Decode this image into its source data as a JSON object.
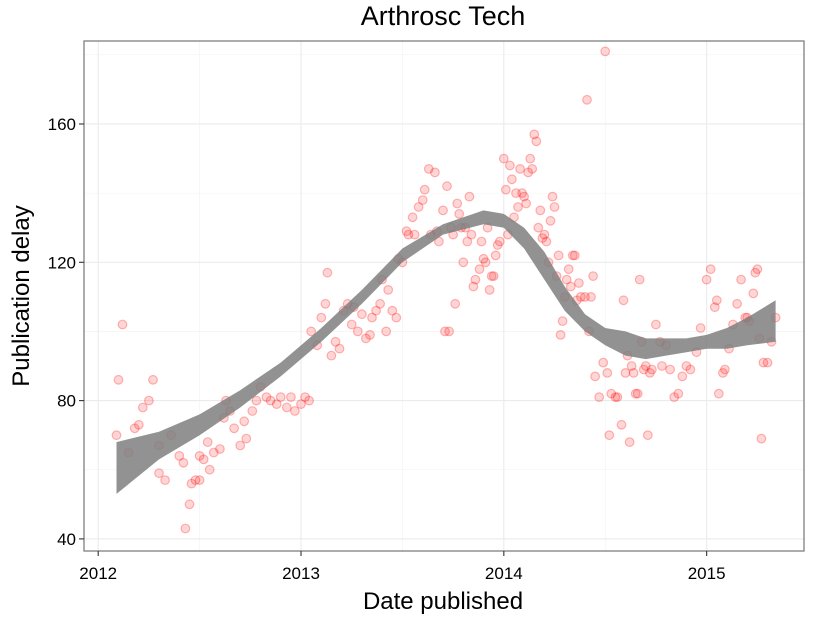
{
  "chart_data": {
    "type": "scatter",
    "title": "Arthrosc Tech",
    "xlabel": "Date published",
    "ylabel": "Publication delay",
    "xlim": [
      2011.93,
      2015.48
    ],
    "ylim": [
      36.5,
      184
    ],
    "x_ticks": [
      {
        "value": 2012,
        "label": "2012"
      },
      {
        "value": 2013,
        "label": "2013"
      },
      {
        "value": 2014,
        "label": "2014"
      },
      {
        "value": 2015,
        "label": "2015"
      }
    ],
    "y_ticks": [
      {
        "value": 40,
        "label": "40"
      },
      {
        "value": 80,
        "label": "80"
      },
      {
        "value": 120,
        "label": "120"
      },
      {
        "value": 160,
        "label": "160"
      }
    ],
    "grid": true,
    "points_color": "#ff0000",
    "smooth_color": "#7f7f7f",
    "points": [
      [
        2012.09,
        70
      ],
      [
        2012.1,
        86
      ],
      [
        2012.12,
        102
      ],
      [
        2012.15,
        65
      ],
      [
        2012.18,
        72
      ],
      [
        2012.2,
        73
      ],
      [
        2012.22,
        78
      ],
      [
        2012.25,
        80
      ],
      [
        2012.27,
        86
      ],
      [
        2012.3,
        67
      ],
      [
        2012.3,
        59
      ],
      [
        2012.33,
        57
      ],
      [
        2012.36,
        70
      ],
      [
        2012.4,
        64
      ],
      [
        2012.42,
        62
      ],
      [
        2012.43,
        43
      ],
      [
        2012.45,
        50
      ],
      [
        2012.46,
        56
      ],
      [
        2012.48,
        57
      ],
      [
        2012.5,
        57
      ],
      [
        2012.5,
        64
      ],
      [
        2012.52,
        63
      ],
      [
        2012.54,
        68
      ],
      [
        2012.55,
        60
      ],
      [
        2012.57,
        65
      ],
      [
        2012.6,
        66
      ],
      [
        2012.62,
        75
      ],
      [
        2012.63,
        80
      ],
      [
        2012.65,
        77
      ],
      [
        2012.67,
        72
      ],
      [
        2012.7,
        67
      ],
      [
        2012.72,
        74
      ],
      [
        2012.73,
        69
      ],
      [
        2012.76,
        77
      ],
      [
        2012.78,
        80
      ],
      [
        2012.8,
        84
      ],
      [
        2012.83,
        81
      ],
      [
        2012.85,
        80
      ],
      [
        2012.88,
        79
      ],
      [
        2012.9,
        81
      ],
      [
        2012.93,
        78
      ],
      [
        2012.95,
        81
      ],
      [
        2012.97,
        77
      ],
      [
        2013.0,
        79
      ],
      [
        2013.02,
        81
      ],
      [
        2013.04,
        80
      ],
      [
        2013.05,
        100
      ],
      [
        2013.08,
        96
      ],
      [
        2013.1,
        104
      ],
      [
        2013.12,
        108
      ],
      [
        2013.13,
        117
      ],
      [
        2013.15,
        93
      ],
      [
        2013.17,
        97
      ],
      [
        2013.19,
        95
      ],
      [
        2013.21,
        106
      ],
      [
        2013.23,
        108
      ],
      [
        2013.25,
        102
      ],
      [
        2013.26,
        107
      ],
      [
        2013.28,
        100
      ],
      [
        2013.3,
        105
      ],
      [
        2013.32,
        98
      ],
      [
        2013.34,
        99
      ],
      [
        2013.35,
        104
      ],
      [
        2013.37,
        106
      ],
      [
        2013.39,
        108
      ],
      [
        2013.4,
        115
      ],
      [
        2013.42,
        100
      ],
      [
        2013.43,
        112
      ],
      [
        2013.45,
        106
      ],
      [
        2013.47,
        104
      ],
      [
        2013.48,
        121
      ],
      [
        2013.5,
        120
      ],
      [
        2013.52,
        129
      ],
      [
        2013.53,
        128
      ],
      [
        2013.55,
        133
      ],
      [
        2013.56,
        128
      ],
      [
        2013.58,
        136
      ],
      [
        2013.6,
        138
      ],
      [
        2013.61,
        141
      ],
      [
        2013.63,
        147
      ],
      [
        2013.64,
        128
      ],
      [
        2013.66,
        146
      ],
      [
        2013.67,
        129
      ],
      [
        2013.68,
        126
      ],
      [
        2013.7,
        135
      ],
      [
        2013.71,
        100
      ],
      [
        2013.72,
        142
      ],
      [
        2013.73,
        100
      ],
      [
        2013.74,
        130
      ],
      [
        2013.75,
        128
      ],
      [
        2013.76,
        108
      ],
      [
        2013.77,
        137
      ],
      [
        2013.78,
        134
      ],
      [
        2013.79,
        130
      ],
      [
        2013.8,
        120
      ],
      [
        2013.81,
        130
      ],
      [
        2013.82,
        126
      ],
      [
        2013.83,
        139
      ],
      [
        2013.84,
        128
      ],
      [
        2013.85,
        113
      ],
      [
        2013.86,
        115
      ],
      [
        2013.88,
        118
      ],
      [
        2013.89,
        126
      ],
      [
        2013.9,
        121
      ],
      [
        2013.91,
        120
      ],
      [
        2013.92,
        130
      ],
      [
        2013.93,
        112
      ],
      [
        2013.94,
        116
      ],
      [
        2013.95,
        116
      ],
      [
        2013.96,
        122
      ],
      [
        2013.97,
        125
      ],
      [
        2013.98,
        126
      ],
      [
        2014.0,
        150
      ],
      [
        2014.01,
        141
      ],
      [
        2014.02,
        128
      ],
      [
        2014.03,
        148
      ],
      [
        2014.04,
        144
      ],
      [
        2014.05,
        133
      ],
      [
        2014.06,
        140
      ],
      [
        2014.07,
        136
      ],
      [
        2014.08,
        147
      ],
      [
        2014.09,
        140
      ],
      [
        2014.1,
        139
      ],
      [
        2014.11,
        137
      ],
      [
        2014.12,
        146
      ],
      [
        2014.13,
        150
      ],
      [
        2014.14,
        147
      ],
      [
        2014.15,
        157
      ],
      [
        2014.16,
        155
      ],
      [
        2014.17,
        130
      ],
      [
        2014.18,
        135
      ],
      [
        2014.19,
        127
      ],
      [
        2014.2,
        128
      ],
      [
        2014.21,
        126
      ],
      [
        2014.22,
        120
      ],
      [
        2014.23,
        132
      ],
      [
        2014.24,
        139
      ],
      [
        2014.25,
        136
      ],
      [
        2014.26,
        116
      ],
      [
        2014.27,
        122
      ],
      [
        2014.28,
        99
      ],
      [
        2014.29,
        103
      ],
      [
        2014.3,
        110
      ],
      [
        2014.31,
        115
      ],
      [
        2014.32,
        118
      ],
      [
        2014.33,
        113
      ],
      [
        2014.34,
        122
      ],
      [
        2014.35,
        122
      ],
      [
        2014.36,
        109
      ],
      [
        2014.37,
        114
      ],
      [
        2014.38,
        110
      ],
      [
        2014.4,
        110
      ],
      [
        2014.41,
        167
      ],
      [
        2014.42,
        100
      ],
      [
        2014.43,
        110
      ],
      [
        2014.44,
        116
      ],
      [
        2014.45,
        87
      ],
      [
        2014.47,
        81
      ],
      [
        2014.49,
        91
      ],
      [
        2014.5,
        181
      ],
      [
        2014.51,
        88
      ],
      [
        2014.52,
        70
      ],
      [
        2014.53,
        82
      ],
      [
        2014.55,
        81
      ],
      [
        2014.56,
        81
      ],
      [
        2014.58,
        73
      ],
      [
        2014.59,
        109
      ],
      [
        2014.6,
        88
      ],
      [
        2014.61,
        93
      ],
      [
        2014.62,
        68
      ],
      [
        2014.63,
        90
      ],
      [
        2014.64,
        88
      ],
      [
        2014.65,
        82
      ],
      [
        2014.66,
        82
      ],
      [
        2014.67,
        115
      ],
      [
        2014.68,
        97
      ],
      [
        2014.69,
        89
      ],
      [
        2014.7,
        90
      ],
      [
        2014.71,
        70
      ],
      [
        2014.72,
        88
      ],
      [
        2014.73,
        89
      ],
      [
        2014.75,
        102
      ],
      [
        2014.77,
        97
      ],
      [
        2014.78,
        90
      ],
      [
        2014.8,
        96
      ],
      [
        2014.82,
        89
      ],
      [
        2014.84,
        81
      ],
      [
        2014.86,
        82
      ],
      [
        2014.88,
        87
      ],
      [
        2014.9,
        90
      ],
      [
        2014.92,
        89
      ],
      [
        2014.95,
        94
      ],
      [
        2014.97,
        101
      ],
      [
        2015.0,
        115
      ],
      [
        2015.02,
        118
      ],
      [
        2015.04,
        107
      ],
      [
        2015.05,
        109
      ],
      [
        2015.06,
        82
      ],
      [
        2015.08,
        88
      ],
      [
        2015.09,
        89
      ],
      [
        2015.11,
        95
      ],
      [
        2015.13,
        102
      ],
      [
        2015.15,
        108
      ],
      [
        2015.17,
        115
      ],
      [
        2015.19,
        104
      ],
      [
        2015.2,
        104
      ],
      [
        2015.21,
        103
      ],
      [
        2015.23,
        111
      ],
      [
        2015.24,
        117
      ],
      [
        2015.25,
        118
      ],
      [
        2015.26,
        98
      ],
      [
        2015.27,
        69
      ],
      [
        2015.28,
        91
      ],
      [
        2015.3,
        91
      ],
      [
        2015.32,
        97
      ],
      [
        2015.34,
        104
      ]
    ],
    "smooth": {
      "x": [
        2012.09,
        2012.3,
        2012.5,
        2012.7,
        2012.9,
        2013.1,
        2013.3,
        2013.5,
        2013.7,
        2013.9,
        2014.0,
        2014.1,
        2014.2,
        2014.3,
        2014.4,
        2014.5,
        2014.6,
        2014.7,
        2014.8,
        2014.9,
        2015.0,
        2015.1,
        2015.2,
        2015.34
      ],
      "lower": [
        53,
        63,
        70,
        78,
        87,
        97,
        108,
        120,
        128,
        131,
        130,
        124,
        115,
        106,
        100,
        96,
        93,
        92,
        93,
        94,
        95,
        95,
        96,
        97
      ],
      "upper": [
        68,
        71,
        76,
        83,
        91,
        101,
        112,
        124,
        131,
        135,
        134,
        130,
        123,
        113,
        105,
        101,
        100,
        98,
        98,
        98,
        99,
        101,
        104,
        109
      ]
    }
  }
}
